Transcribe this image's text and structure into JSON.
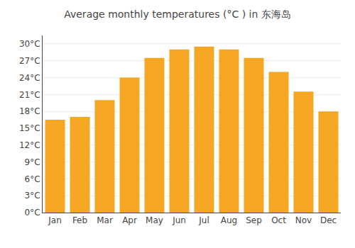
{
  "chart_data": {
    "type": "bar",
    "title": "Average monthly temperatures (°C ) in 东海岛",
    "categories": [
      "Jan",
      "Feb",
      "Mar",
      "Apr",
      "May",
      "Jun",
      "Jul",
      "Aug",
      "Sep",
      "Oct",
      "Nov",
      "Dec"
    ],
    "values": [
      16.5,
      17.0,
      20.0,
      24.0,
      27.5,
      29.0,
      29.5,
      29.0,
      27.5,
      25.0,
      21.5,
      18.0
    ],
    "color": "#F5A623",
    "ylim": [
      0,
      31.5
    ],
    "yticks": [
      {
        "value": 0,
        "label": "0°C"
      },
      {
        "value": 3,
        "label": "3°C"
      },
      {
        "value": 6,
        "label": "6°C"
      },
      {
        "value": 9,
        "label": "9°C"
      },
      {
        "value": 12,
        "label": "12°C"
      },
      {
        "value": 15,
        "label": "15°C"
      },
      {
        "value": 18,
        "label": "18°C"
      },
      {
        "value": 21,
        "label": "21°C"
      },
      {
        "value": 24,
        "label": "24°C"
      },
      {
        "value": 27,
        "label": "27°C"
      },
      {
        "value": 30,
        "label": "30°C"
      }
    ],
    "grid": true
  }
}
